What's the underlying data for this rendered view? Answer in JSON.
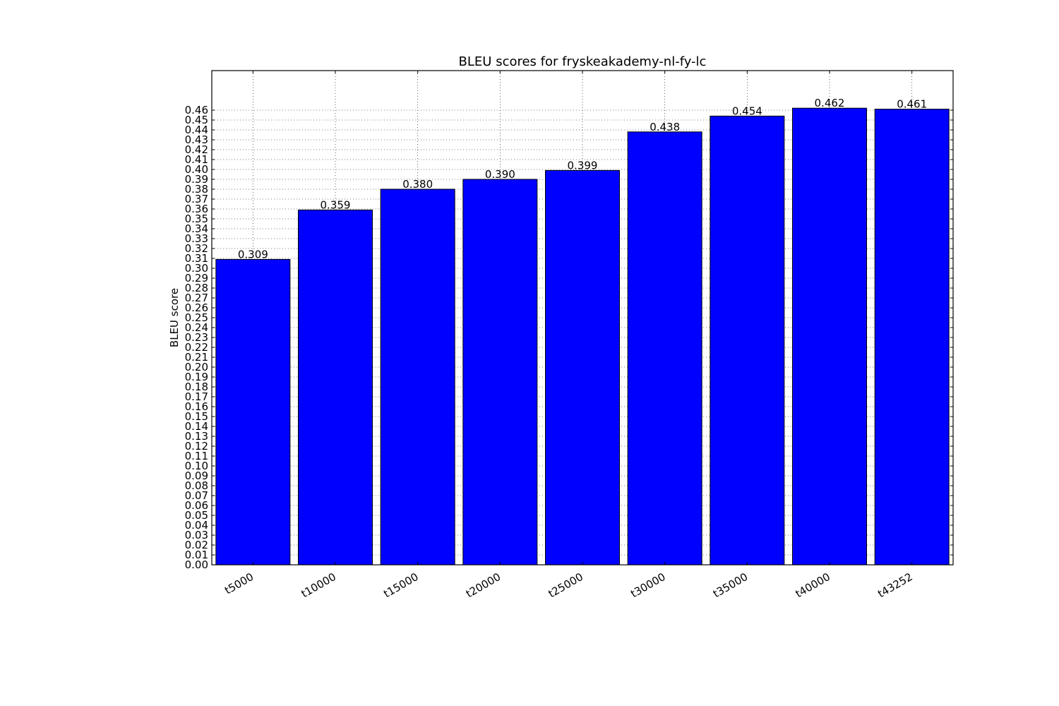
{
  "chart_data": {
    "type": "bar",
    "title": "BLEU scores for fryskeakademy-nl-fy-lc",
    "xlabel": "",
    "ylabel": "BLEU score",
    "categories": [
      "t5000",
      "t10000",
      "t15000",
      "t20000",
      "t25000",
      "t30000",
      "t35000",
      "t40000",
      "t43252"
    ],
    "values": [
      0.309,
      0.359,
      0.38,
      0.39,
      0.399,
      0.438,
      0.454,
      0.462,
      0.461
    ],
    "value_labels": [
      "0.309",
      "0.359",
      "0.380",
      "0.390",
      "0.399",
      "0.438",
      "0.454",
      "0.462",
      "0.461"
    ],
    "ylim": [
      0,
      0.5
    ],
    "yticks": [
      "0.00",
      "0.01",
      "0.02",
      "0.03",
      "0.04",
      "0.05",
      "0.06",
      "0.07",
      "0.08",
      "0.09",
      "0.10",
      "0.11",
      "0.12",
      "0.13",
      "0.14",
      "0.15",
      "0.16",
      "0.17",
      "0.18",
      "0.19",
      "0.20",
      "0.21",
      "0.22",
      "0.23",
      "0.24",
      "0.25",
      "0.26",
      "0.27",
      "0.28",
      "0.29",
      "0.30",
      "0.31",
      "0.32",
      "0.33",
      "0.34",
      "0.35",
      "0.36",
      "0.37",
      "0.38",
      "0.39",
      "0.40",
      "0.41",
      "0.42",
      "0.43",
      "0.44",
      "0.45",
      "0.46"
    ],
    "grid": true,
    "bar_color": "#0000ff",
    "edge_color": "#000000"
  }
}
